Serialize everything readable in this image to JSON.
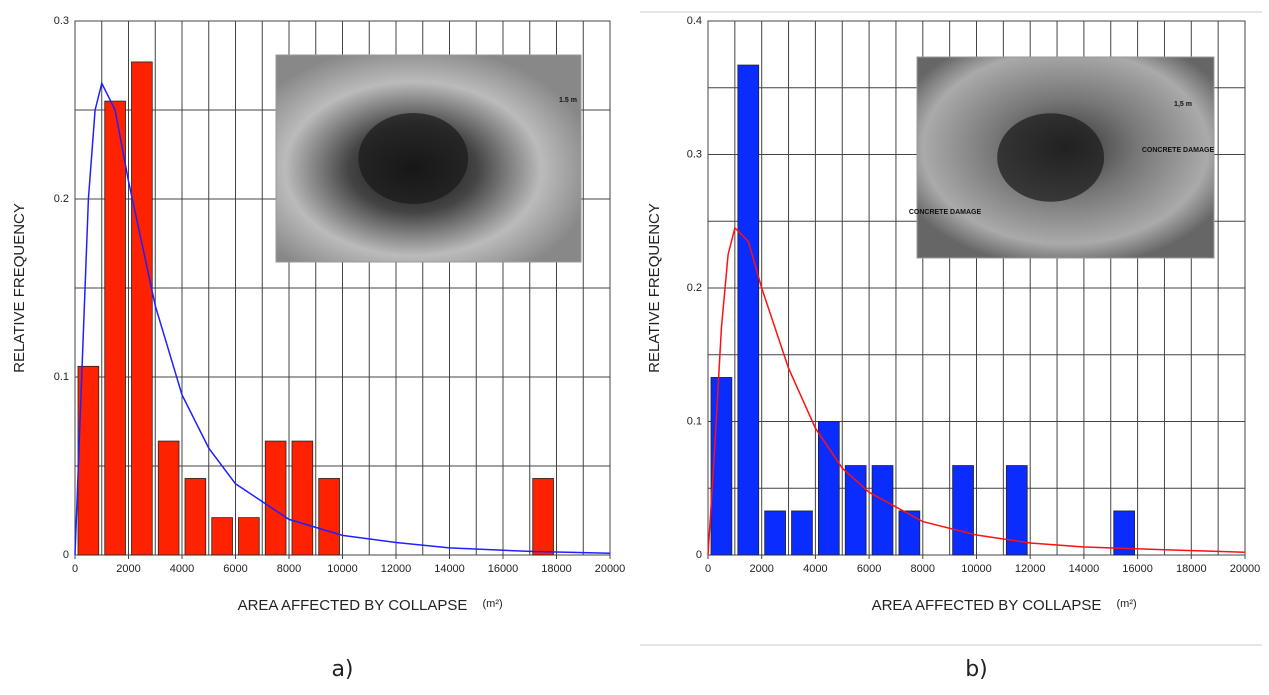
{
  "chart_data": [
    {
      "type": "histogram",
      "panel_label": "a)",
      "ylabel": "RELATIVE FREQUENCY",
      "xlabel": "AREA AFFECTED BY COLLAPSE",
      "x_unit": "(m²)",
      "bins": [
        0,
        1000,
        2000,
        3000,
        4000,
        5000,
        6000,
        7000,
        8000,
        9000,
        10000,
        11000,
        12000,
        13000,
        14000,
        15000,
        16000,
        17000,
        18000
      ],
      "values": [
        0.106,
        0.255,
        0.277,
        0.064,
        0.043,
        0.021,
        0.021,
        0.064,
        0.064,
        0.043,
        0,
        0,
        0,
        0,
        0,
        0,
        0,
        0.043
      ],
      "color": "#ff2200",
      "curve": {
        "color": "#2020ff",
        "x": [
          0,
          250,
          500,
          750,
          1000,
          1500,
          2000,
          3000,
          4000,
          5000,
          6000,
          8000,
          10000,
          12000,
          14000,
          17000,
          20000
        ],
        "values": [
          0,
          0.1,
          0.2,
          0.25,
          0.265,
          0.25,
          0.21,
          0.14,
          0.09,
          0.06,
          0.04,
          0.02,
          0.011,
          0.007,
          0.004,
          0.002,
          0.001
        ]
      },
      "xlim": [
        0,
        20000
      ],
      "xticks": [
        0,
        2000,
        4000,
        6000,
        8000,
        10000,
        12000,
        14000,
        16000,
        18000,
        20000
      ],
      "ylim": [
        0,
        0.3
      ],
      "yticks": [
        0,
        0.1,
        0.2,
        0.3
      ],
      "grid": true,
      "inset": {
        "labels": [
          "1.5 m"
        ]
      }
    },
    {
      "type": "histogram",
      "panel_label": "b)",
      "ylabel": "RELATIVE FREQUENCY",
      "xlabel": "AREA AFFECTED BY COLLAPSE",
      "x_unit": "(m²)",
      "bins": [
        0,
        1000,
        2000,
        3000,
        4000,
        5000,
        6000,
        7000,
        8000,
        9000,
        10000,
        11000,
        12000,
        13000,
        14000,
        15000,
        16000
      ],
      "values": [
        0.133,
        0.367,
        0.033,
        0.033,
        0.1,
        0.067,
        0.067,
        0.033,
        0,
        0.067,
        0,
        0.067,
        0,
        0,
        0,
        0.033
      ],
      "color": "#0a2cff",
      "curve": {
        "color": "#ff1010",
        "x": [
          0,
          250,
          500,
          750,
          1000,
          1500,
          2000,
          3000,
          4000,
          5000,
          6000,
          8000,
          10000,
          12000,
          14000,
          17000,
          20000
        ],
        "values": [
          0,
          0.08,
          0.17,
          0.225,
          0.245,
          0.235,
          0.2,
          0.14,
          0.095,
          0.065,
          0.047,
          0.025,
          0.015,
          0.009,
          0.006,
          0.004,
          0.002
        ]
      },
      "xlim": [
        0,
        20000
      ],
      "xticks": [
        0,
        2000,
        4000,
        6000,
        8000,
        10000,
        12000,
        14000,
        16000,
        18000,
        20000
      ],
      "ylim": [
        0,
        0.4
      ],
      "yticks": [
        0,
        0.1,
        0.2,
        0.3,
        0.4
      ],
      "grid": true,
      "inset": {
        "labels": [
          "1,5 m",
          "CONCRETE DAMAGE",
          "CONCRETE DAMAGE"
        ]
      }
    }
  ]
}
